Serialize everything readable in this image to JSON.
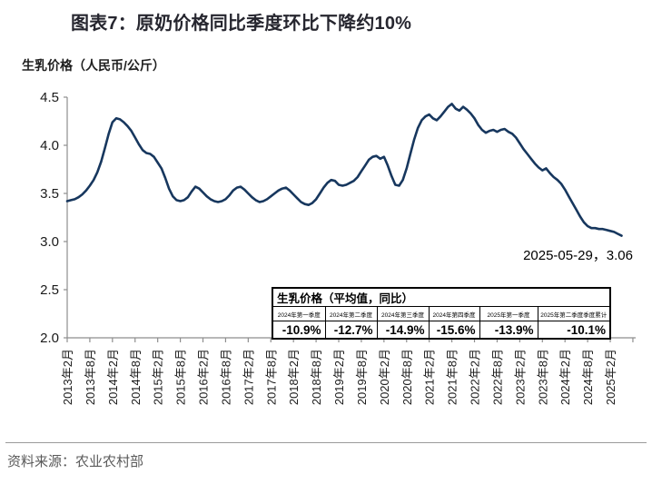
{
  "figure": {
    "title": "图表7：原奶价格同比季度环比下降约10%",
    "source": "资料来源：农业农村部"
  },
  "chart_data": {
    "type": "line",
    "caption": "生乳价格（人民币/公斤）",
    "ylabel": "生乳价格（人民币/公斤）",
    "ylim": [
      2.0,
      4.5
    ],
    "ytick_labels": [
      "2.0",
      "2.5",
      "3.0",
      "3.5",
      "4.0",
      "4.5"
    ],
    "x_start": "2013-02",
    "x_frequency": "monthly",
    "x_tick_labels": [
      "2013年2月",
      "2013年8月",
      "2014年2月",
      "2014年8月",
      "2015年2月",
      "2015年8月",
      "2016年2月",
      "2016年8月",
      "2017年2月",
      "2017年8月",
      "2018年2月",
      "2018年8月",
      "2019年2月",
      "2019年8月",
      "2020年2月",
      "2020年8月",
      "2021年2月",
      "2021年8月",
      "2022年2月",
      "2022年8月",
      "2023年2月",
      "2023年8月",
      "2024年2月",
      "2024年8月",
      "2025年2月"
    ],
    "grid": false,
    "legend": false,
    "series": [
      {
        "name": "生乳价格",
        "color": "#17375e",
        "values": [
          3.42,
          3.43,
          3.44,
          3.46,
          3.49,
          3.53,
          3.58,
          3.64,
          3.72,
          3.83,
          3.97,
          4.12,
          4.24,
          4.28,
          4.27,
          4.24,
          4.2,
          4.15,
          4.08,
          4.01,
          3.95,
          3.92,
          3.91,
          3.88,
          3.82,
          3.76,
          3.66,
          3.55,
          3.47,
          3.43,
          3.42,
          3.43,
          3.46,
          3.52,
          3.57,
          3.55,
          3.51,
          3.47,
          3.44,
          3.42,
          3.41,
          3.42,
          3.44,
          3.48,
          3.53,
          3.56,
          3.57,
          3.54,
          3.5,
          3.46,
          3.43,
          3.41,
          3.42,
          3.44,
          3.47,
          3.5,
          3.53,
          3.55,
          3.56,
          3.53,
          3.49,
          3.45,
          3.41,
          3.39,
          3.38,
          3.4,
          3.44,
          3.5,
          3.56,
          3.61,
          3.64,
          3.63,
          3.59,
          3.58,
          3.59,
          3.61,
          3.63,
          3.67,
          3.73,
          3.79,
          3.85,
          3.88,
          3.89,
          3.86,
          3.88,
          3.79,
          3.68,
          3.59,
          3.58,
          3.64,
          3.76,
          3.91,
          4.06,
          4.18,
          4.26,
          4.3,
          4.32,
          4.28,
          4.26,
          4.3,
          4.35,
          4.4,
          4.43,
          4.38,
          4.36,
          4.4,
          4.37,
          4.33,
          4.28,
          4.21,
          4.16,
          4.13,
          4.15,
          4.16,
          4.14,
          4.16,
          4.17,
          4.14,
          4.12,
          4.08,
          4.02,
          3.96,
          3.91,
          3.86,
          3.81,
          3.77,
          3.74,
          3.76,
          3.71,
          3.67,
          3.64,
          3.6,
          3.54,
          3.47,
          3.4,
          3.33,
          3.26,
          3.2,
          3.16,
          3.14,
          3.14,
          3.13,
          3.13,
          3.12,
          3.11,
          3.1,
          3.08,
          3.06
        ]
      }
    ],
    "annotation": "2025-05-29，3.06",
    "last_point": {
      "date": "2025-05-29",
      "value": 3.06
    },
    "colors": {
      "line": "#17375e",
      "axis": "#8e8e8e",
      "tick_text": "#1a1a1a"
    }
  },
  "overlay_table": {
    "title": "生乳价格（平均值，同比）",
    "headers": [
      "2024年第一季度",
      "2024年第二季度",
      "2024年第三季度",
      "2024年第四季度",
      "2025年第一季度",
      "2025年第二季度季度累计"
    ],
    "values": [
      "-10.9%",
      "-12.7%",
      "-14.9%",
      "-15.6%",
      "-13.9%",
      "-10.1%"
    ]
  }
}
